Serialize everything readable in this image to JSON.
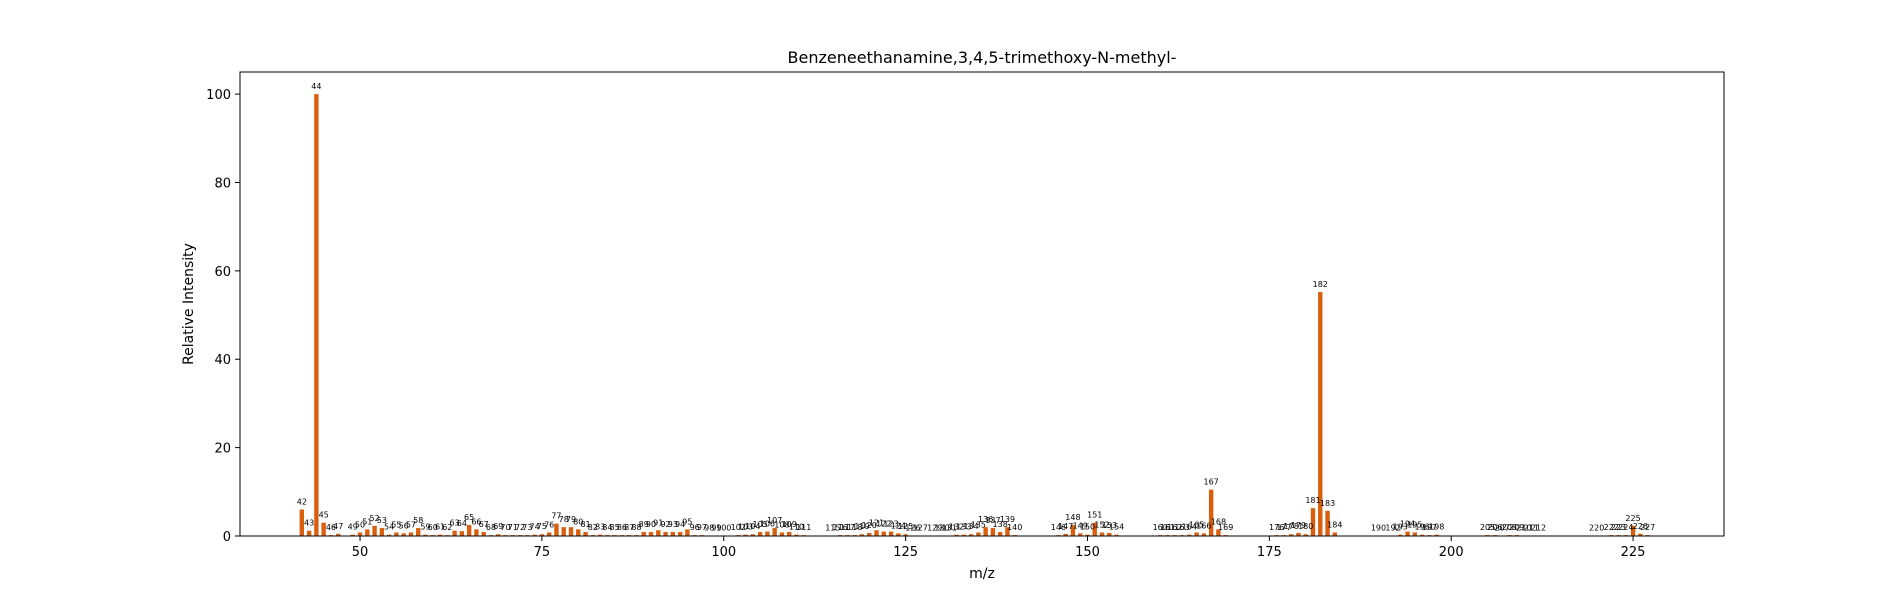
{
  "chart_data": {
    "type": "bar",
    "title": "Benzeneethanamine,3,4,5-trimethoxy-N-methyl-",
    "xlabel": "m/z",
    "ylabel": "Relative Intensity",
    "xlim": [
      33.5,
      237.5
    ],
    "ylim": [
      0,
      105
    ],
    "xticks": [
      50,
      75,
      100,
      125,
      150,
      175,
      200,
      225
    ],
    "yticks": [
      0,
      20,
      40,
      60,
      80,
      100
    ],
    "bar_color": "#d95f0e",
    "grid": false,
    "points": [
      {
        "x": 42,
        "y": 6
      },
      {
        "x": 43,
        "y": 1.2
      },
      {
        "x": 44,
        "y": 100
      },
      {
        "x": 45,
        "y": 3
      },
      {
        "x": 46,
        "y": 0.2
      },
      {
        "x": 47,
        "y": 0.5
      },
      {
        "x": 49,
        "y": 0.3
      },
      {
        "x": 50,
        "y": 0.8
      },
      {
        "x": 51,
        "y": 1.5
      },
      {
        "x": 52,
        "y": 2.3
      },
      {
        "x": 53,
        "y": 1.8
      },
      {
        "x": 54,
        "y": 0.3
      },
      {
        "x": 55,
        "y": 0.8
      },
      {
        "x": 56,
        "y": 0.6
      },
      {
        "x": 57,
        "y": 0.8
      },
      {
        "x": 58,
        "y": 1.8
      },
      {
        "x": 59,
        "y": 0.3
      },
      {
        "x": 60,
        "y": 0.2
      },
      {
        "x": 61,
        "y": 0.3
      },
      {
        "x": 62,
        "y": 0.2
      },
      {
        "x": 63,
        "y": 1.2
      },
      {
        "x": 64,
        "y": 1.1
      },
      {
        "x": 65,
        "y": 2.5
      },
      {
        "x": 66,
        "y": 1.5
      },
      {
        "x": 67,
        "y": 0.9
      },
      {
        "x": 68,
        "y": 0.2
      },
      {
        "x": 69,
        "y": 0.4
      },
      {
        "x": 70,
        "y": 0.2
      },
      {
        "x": 71,
        "y": 0.2
      },
      {
        "x": 72,
        "y": 0.2
      },
      {
        "x": 73,
        "y": 0.2
      },
      {
        "x": 74,
        "y": 0.3
      },
      {
        "x": 75,
        "y": 0.4
      },
      {
        "x": 76,
        "y": 0.8
      },
      {
        "x": 77,
        "y": 2.8
      },
      {
        "x": 78,
        "y": 2
      },
      {
        "x": 79,
        "y": 2
      },
      {
        "x": 80,
        "y": 1.5
      },
      {
        "x": 81,
        "y": 0.9
      },
      {
        "x": 82,
        "y": 0.2
      },
      {
        "x": 83,
        "y": 0.3
      },
      {
        "x": 84,
        "y": 0.2
      },
      {
        "x": 85,
        "y": 0.2
      },
      {
        "x": 86,
        "y": 0.2
      },
      {
        "x": 87,
        "y": 0.2
      },
      {
        "x": 88,
        "y": 0.2
      },
      {
        "x": 89,
        "y": 0.9
      },
      {
        "x": 90,
        "y": 0.9
      },
      {
        "x": 91,
        "y": 1.3
      },
      {
        "x": 92,
        "y": 0.9
      },
      {
        "x": 93,
        "y": 0.9
      },
      {
        "x": 94,
        "y": 0.9
      },
      {
        "x": 95,
        "y": 1.5
      },
      {
        "x": 96,
        "y": 0.2
      },
      {
        "x": 97,
        "y": 0.2
      },
      {
        "x": 98,
        "y": 0.1
      },
      {
        "x": 99,
        "y": 0.1
      },
      {
        "x": 100,
        "y": 0.1
      },
      {
        "x": 102,
        "y": 0.2
      },
      {
        "x": 103,
        "y": 0.3
      },
      {
        "x": 104,
        "y": 0.4
      },
      {
        "x": 105,
        "y": 0.9
      },
      {
        "x": 106,
        "y": 1
      },
      {
        "x": 107,
        "y": 1.8
      },
      {
        "x": 108,
        "y": 0.8
      },
      {
        "x": 109,
        "y": 0.9
      },
      {
        "x": 110,
        "y": 0.3
      },
      {
        "x": 111,
        "y": 0.2
      },
      {
        "x": 115,
        "y": 0.1
      },
      {
        "x": 116,
        "y": 0.2
      },
      {
        "x": 117,
        "y": 0.2
      },
      {
        "x": 118,
        "y": 0.2
      },
      {
        "x": 119,
        "y": 0.4
      },
      {
        "x": 120,
        "y": 0.7
      },
      {
        "x": 121,
        "y": 1.3
      },
      {
        "x": 122,
        "y": 1
      },
      {
        "x": 123,
        "y": 1
      },
      {
        "x": 124,
        "y": 0.6
      },
      {
        "x": 125,
        "y": 0.4
      },
      {
        "x": 126,
        "y": 0.1
      },
      {
        "x": 127,
        "y": 0.1
      },
      {
        "x": 129,
        "y": 0.1
      },
      {
        "x": 130,
        "y": 0.1
      },
      {
        "x": 131,
        "y": 0.1
      },
      {
        "x": 132,
        "y": 0.3
      },
      {
        "x": 133,
        "y": 0.3
      },
      {
        "x": 134,
        "y": 0.4
      },
      {
        "x": 135,
        "y": 0.8
      },
      {
        "x": 136,
        "y": 2
      },
      {
        "x": 137,
        "y": 1.8
      },
      {
        "x": 138,
        "y": 0.9
      },
      {
        "x": 139,
        "y": 2
      },
      {
        "x": 140,
        "y": 0.2
      },
      {
        "x": 146,
        "y": 0.2
      },
      {
        "x": 147,
        "y": 0.5
      },
      {
        "x": 148,
        "y": 2.5
      },
      {
        "x": 149,
        "y": 0.6
      },
      {
        "x": 150,
        "y": 0.3
      },
      {
        "x": 151,
        "y": 3
      },
      {
        "x": 152,
        "y": 0.8
      },
      {
        "x": 153,
        "y": 0.7
      },
      {
        "x": 154,
        "y": 0.3
      },
      {
        "x": 160,
        "y": 0.2
      },
      {
        "x": 161,
        "y": 0.2
      },
      {
        "x": 162,
        "y": 0.2
      },
      {
        "x": 163,
        "y": 0.2
      },
      {
        "x": 164,
        "y": 0.3
      },
      {
        "x": 165,
        "y": 0.8
      },
      {
        "x": 166,
        "y": 0.6
      },
      {
        "x": 167,
        "y": 10.5
      },
      {
        "x": 168,
        "y": 1.5
      },
      {
        "x": 169,
        "y": 0.2
      },
      {
        "x": 176,
        "y": 0.2
      },
      {
        "x": 177,
        "y": 0.2
      },
      {
        "x": 178,
        "y": 0.4
      },
      {
        "x": 179,
        "y": 0.7
      },
      {
        "x": 180,
        "y": 0.4
      },
      {
        "x": 181,
        "y": 6.3
      },
      {
        "x": 182,
        "y": 55.2
      },
      {
        "x": 183,
        "y": 5.7
      },
      {
        "x": 184,
        "y": 0.8
      },
      {
        "x": 190,
        "y": 0.1
      },
      {
        "x": 192,
        "y": 0.1
      },
      {
        "x": 193,
        "y": 0.3
      },
      {
        "x": 194,
        "y": 1
      },
      {
        "x": 195,
        "y": 0.8
      },
      {
        "x": 196,
        "y": 0.3
      },
      {
        "x": 197,
        "y": 0.2
      },
      {
        "x": 198,
        "y": 0.3
      },
      {
        "x": 205,
        "y": 0.2
      },
      {
        "x": 206,
        "y": 0.2
      },
      {
        "x": 207,
        "y": 0.1
      },
      {
        "x": 208,
        "y": 0.2
      },
      {
        "x": 209,
        "y": 0.2
      },
      {
        "x": 210,
        "y": 0.1
      },
      {
        "x": 211,
        "y": 0.1
      },
      {
        "x": 212,
        "y": 0.1
      },
      {
        "x": 220,
        "y": 0.1
      },
      {
        "x": 222,
        "y": 0.2
      },
      {
        "x": 223,
        "y": 0.2
      },
      {
        "x": 224,
        "y": 0.2
      },
      {
        "x": 225,
        "y": 2.3
      },
      {
        "x": 226,
        "y": 0.5
      },
      {
        "x": 227,
        "y": 0.2
      }
    ]
  }
}
